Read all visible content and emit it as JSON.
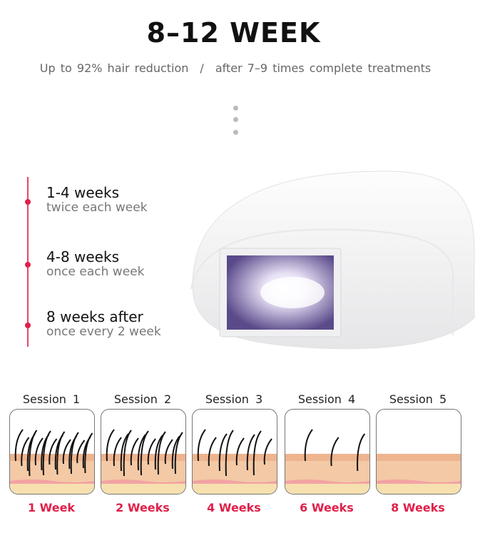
{
  "header": {
    "title": "8–12  WEEK",
    "subtitle_left": "Up to 92% hair reduction",
    "separator": "/",
    "subtitle_right": "after 7–9 times complete treatments"
  },
  "timeline": [
    {
      "period": "1-4 weeks",
      "frequency": "twice each week"
    },
    {
      "period": "4-8 weeks",
      "frequency": "once each week"
    },
    {
      "period": "8 weeks after",
      "frequency": "once every 2 week"
    }
  ],
  "sessions": [
    {
      "label": "Session  1",
      "duration": "1 Week"
    },
    {
      "label": "Session  2",
      "duration": "2 Weeks"
    },
    {
      "label": "Session  3",
      "duration": "4 Weeks"
    },
    {
      "label": "Session  4",
      "duration": "6 Weeks"
    },
    {
      "label": "Session  5",
      "duration": "8 Weeks"
    }
  ],
  "colors": {
    "accent": "#e0204a",
    "skin": "#f3c9a6",
    "fat": "#f7e0b0"
  }
}
